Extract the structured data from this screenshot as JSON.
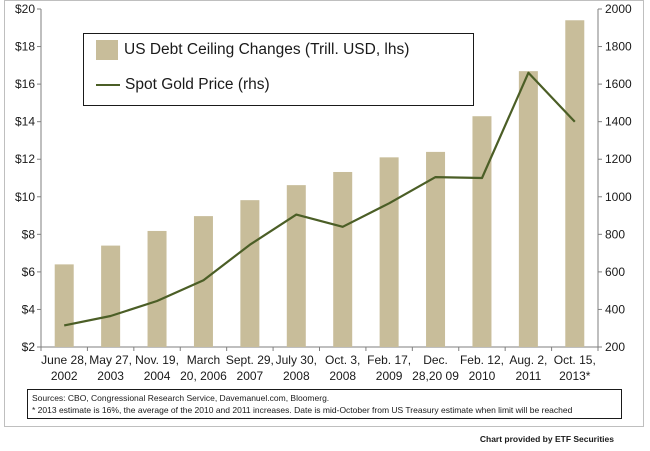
{
  "chart_data": {
    "type": "bar+line",
    "categories": [
      [
        "June 28,",
        "2002"
      ],
      [
        "May 27,",
        "2003"
      ],
      [
        "Nov. 19,",
        "2004"
      ],
      [
        "March",
        "20, 2006"
      ],
      [
        "Sept. 29,",
        "2007"
      ],
      [
        "July 30,",
        "2008"
      ],
      [
        "Oct. 3,",
        "2008"
      ],
      [
        "Feb. 17,",
        "2009"
      ],
      [
        "Dec.",
        "28,20 09"
      ],
      [
        "Feb. 12,",
        "2010"
      ],
      [
        "Aug. 2,",
        "2011"
      ],
      [
        "Oct. 15,",
        "2013*"
      ]
    ],
    "series": [
      {
        "name": "US Debt Ceiling Changes (Trill. USD, lhs)",
        "kind": "bar",
        "axis": "left",
        "color": "#c8bd9a",
        "values": [
          6.4,
          7.4,
          8.18,
          8.97,
          9.82,
          10.62,
          11.32,
          12.1,
          12.39,
          14.29,
          16.69,
          19.4
        ]
      },
      {
        "name": "Spot Gold Price (rhs)",
        "kind": "line",
        "axis": "right",
        "color": "#4b5e26",
        "values": [
          315,
          365,
          445,
          555,
          745,
          905,
          840,
          965,
          1105,
          1100,
          1660,
          1400
        ]
      }
    ],
    "y_left": {
      "min": 2,
      "max": 20,
      "step": 2,
      "tick_labels": [
        "$2",
        "$4",
        "$6",
        "$8",
        "$10",
        "$12",
        "$14",
        "$16",
        "$18",
        "$20"
      ]
    },
    "y_right": {
      "min": 200,
      "max": 2000,
      "step": 200,
      "tick_labels": [
        "200",
        "400",
        "600",
        "800",
        "1000",
        "1200",
        "1400",
        "1600",
        "1800",
        "2000"
      ]
    },
    "grid": false,
    "legend_position": "top-left"
  },
  "sources": {
    "line1": "Sources: CBO, Congressional Research Service, Davemanuel.com, Bloomerg.",
    "line2": "* 2013  estimate is 16%, the average of the 2010  and 2011  increases. Date is mid-October from US Treasury estimate when limit will be reached"
  },
  "credit": "Chart provided by ETF Securities"
}
